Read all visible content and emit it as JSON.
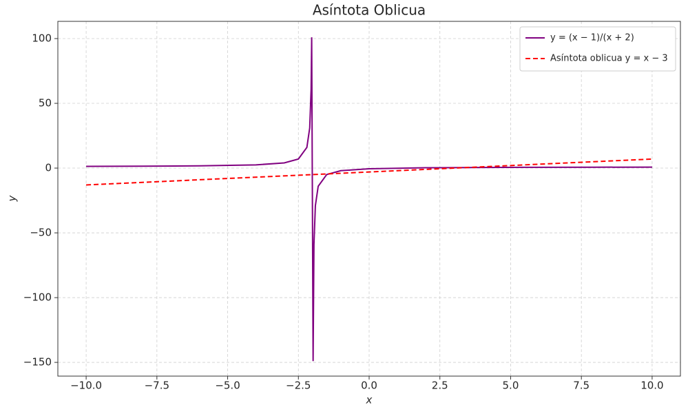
{
  "chart_data": {
    "type": "line",
    "title": "Asíntota Oblicua",
    "x_label": "x",
    "y_label": "y",
    "series": [
      {
        "name": "y = (x − 1)/(x + 2)",
        "color": "#800080",
        "dash": false,
        "x": [
          -10,
          -8,
          -6,
          -4,
          -3,
          -2.5,
          -2.2,
          -2.1,
          -2.05,
          -2.03,
          -1.98,
          -1.95,
          -1.9,
          -1.8,
          -1.5,
          -1,
          0,
          2,
          4,
          6,
          8,
          10
        ],
        "values": [
          1.375,
          1.5,
          1.75,
          2.5,
          4,
          7,
          16,
          31,
          61,
          101,
          -149,
          -59,
          -29,
          -14,
          -5,
          -2,
          -0.5,
          0.25,
          0.5,
          0.625,
          0.7,
          0.75
        ]
      },
      {
        "name": "Asíntota oblicua y = x − 3",
        "color": "#ff0000",
        "dash": true,
        "x": [
          -10,
          10
        ],
        "values": [
          -13,
          7
        ]
      }
    ],
    "xlim": [
      -11,
      11
    ],
    "ylim": [
      -160.6,
      113.3
    ],
    "xticks": [
      {
        "value": -10,
        "label": "−10.0"
      },
      {
        "value": -7.5,
        "label": "−7.5"
      },
      {
        "value": -5,
        "label": "−5.0"
      },
      {
        "value": -2.5,
        "label": "−2.5"
      },
      {
        "value": 0,
        "label": "0.0"
      },
      {
        "value": 2.5,
        "label": "2.5"
      },
      {
        "value": 5,
        "label": "5.0"
      },
      {
        "value": 7.5,
        "label": "7.5"
      },
      {
        "value": 10,
        "label": "10.0"
      }
    ],
    "yticks": [
      {
        "value": -150,
        "label": "−150"
      },
      {
        "value": -100,
        "label": "−100"
      },
      {
        "value": -50,
        "label": "−50"
      },
      0,
      50,
      100
    ],
    "grid": true,
    "legend": "upper right"
  }
}
